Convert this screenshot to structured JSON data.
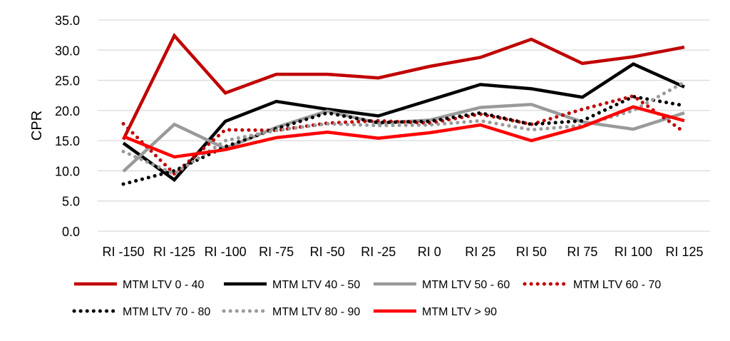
{
  "chart_data": {
    "type": "line",
    "title": "",
    "xlabel": "",
    "ylabel": "CPR",
    "ylim": [
      0,
      35
    ],
    "yticks": [
      "0.0",
      "5.0",
      "10.0",
      "15.0",
      "20.0",
      "25.0",
      "30.0",
      "35.0"
    ],
    "ytick_values": [
      0,
      5,
      10,
      15,
      20,
      25,
      30,
      35
    ],
    "grid": true,
    "legend_placement": "bottom",
    "categories": [
      "RI -150",
      "RI -125",
      "RI -100",
      "RI -75",
      "RI -50",
      "RI -25",
      "RI 0",
      "RI 25",
      "RI 50",
      "RI 75",
      "RI 100",
      "RI 125"
    ],
    "series": [
      {
        "name": "MTM LTV 0 - 40",
        "color": "#c00000",
        "style": "solid",
        "values": [
          15.2,
          32.4,
          22.9,
          26.0,
          26.0,
          25.4,
          27.3,
          28.8,
          31.8,
          27.8,
          28.9,
          30.5
        ]
      },
      {
        "name": "MTM LTV 40 - 50",
        "color": "#000000",
        "style": "solid",
        "values": [
          14.6,
          8.5,
          18.2,
          21.5,
          20.2,
          19.1,
          21.7,
          24.3,
          23.6,
          22.2,
          27.7,
          23.9
        ]
      },
      {
        "name": "MTM LTV 50 - 60",
        "color": "#9a9a9a",
        "style": "solid",
        "values": [
          9.9,
          17.7,
          13.7,
          17.2,
          19.9,
          17.9,
          18.4,
          20.5,
          21.0,
          18.1,
          16.9,
          19.6
        ]
      },
      {
        "name": "MTM LTV 60 - 70",
        "color": "#c00000",
        "style": "dotted",
        "values": [
          17.8,
          9.5,
          16.8,
          16.7,
          17.9,
          18.3,
          17.9,
          19.4,
          17.7,
          20.2,
          22.4,
          16.4
        ]
      },
      {
        "name": "MTM LTV 70 - 80",
        "color": "#000000",
        "style": "dotted",
        "values": [
          7.8,
          10.0,
          14.0,
          17.0,
          19.6,
          18.0,
          18.2,
          19.6,
          17.7,
          18.3,
          22.3,
          20.8
        ]
      },
      {
        "name": "MTM LTV 80 - 90",
        "color": "#9a9a9a",
        "style": "dotted",
        "values": [
          13.2,
          9.5,
          15.0,
          16.7,
          17.8,
          17.5,
          17.6,
          18.3,
          16.8,
          17.5,
          20.0,
          24.7
        ]
      },
      {
        "name": "MTM LTV > 90",
        "color": "#ff0000",
        "style": "solid",
        "values": [
          15.7,
          12.3,
          13.5,
          15.5,
          16.4,
          15.4,
          16.3,
          17.6,
          15.0,
          17.3,
          20.6,
          18.3
        ]
      }
    ]
  }
}
